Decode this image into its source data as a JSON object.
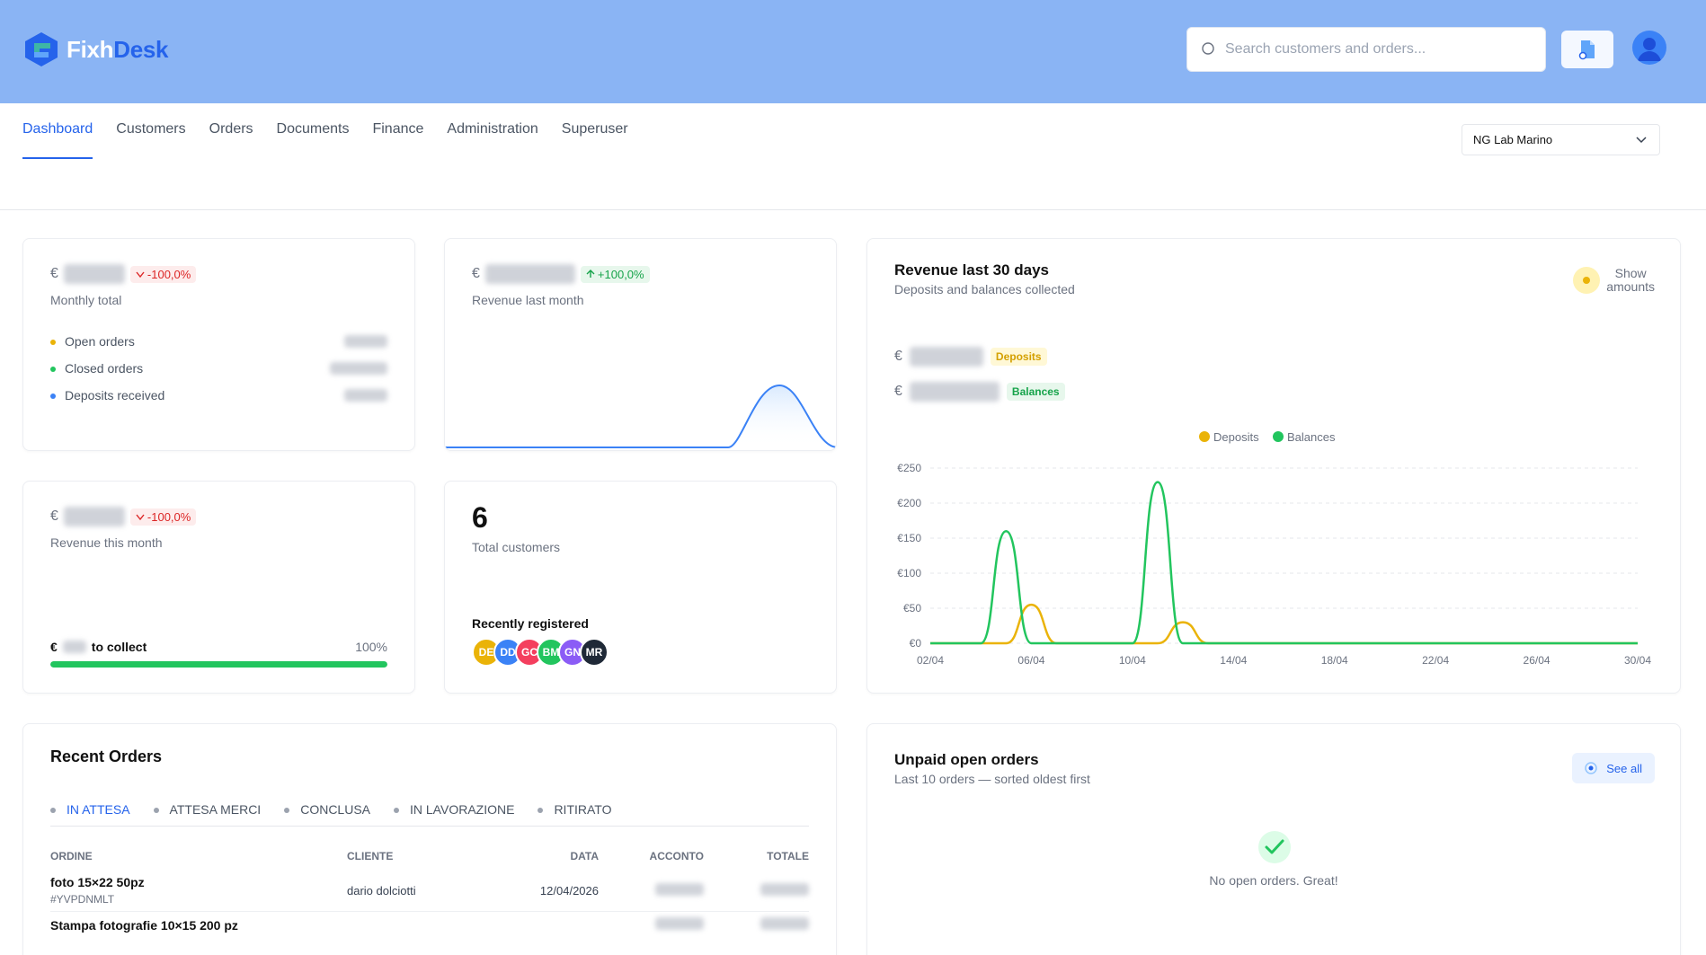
{
  "app": {
    "logo_left": "Fixh",
    "logo_right": "Desk"
  },
  "search": {
    "placeholder": "Search customers and orders..."
  },
  "nav": {
    "tabs": [
      "Dashboard",
      "Customers",
      "Orders",
      "Documents",
      "Finance",
      "Administration",
      "Superuser"
    ],
    "active": "Dashboard"
  },
  "lab_select": {
    "value": "NG Lab Marino"
  },
  "currency": "€",
  "monthly_total": {
    "change": "-100,0%",
    "label": "Monthly total",
    "legend": [
      {
        "label": "Open orders",
        "color": "#eab308"
      },
      {
        "label": "Closed orders",
        "color": "#22c55e"
      },
      {
        "label": "Deposits received",
        "color": "#3b82f6"
      }
    ]
  },
  "revenue_last_month": {
    "change": "+100,0%",
    "label": "Revenue last month"
  },
  "revenue_this_month": {
    "change": "-100,0%",
    "label": "Revenue this month",
    "collect_label": "to collect",
    "collect_percent": "100%",
    "collect_fraction": 1.0
  },
  "customers": {
    "count": "6",
    "label": "Total customers",
    "recent_title": "Recently registered",
    "avatars": [
      {
        "initials": "DE",
        "color": "#eab308"
      },
      {
        "initials": "DD",
        "color": "#3b82f6"
      },
      {
        "initials": "GC",
        "color": "#f43f5e"
      },
      {
        "initials": "BM",
        "color": "#22c55e"
      },
      {
        "initials": "GN",
        "color": "#8b5cf6"
      },
      {
        "initials": "MR",
        "color": "#1f2937"
      }
    ]
  },
  "revenue_30": {
    "title": "Revenue last 30 days",
    "subtitle": "Deposits and balances collected",
    "toggle_label_1": "Show",
    "toggle_label_2": "amounts",
    "deposits_tag": "Deposits",
    "balances_tag": "Balances"
  },
  "chart_data": {
    "type": "line",
    "x": [
      "02/04",
      "03/04",
      "04/04",
      "05/04",
      "06/04",
      "07/04",
      "08/04",
      "09/04",
      "10/04",
      "11/04",
      "12/04",
      "13/04",
      "14/04",
      "15/04",
      "16/04",
      "17/04",
      "18/04",
      "19/04",
      "20/04",
      "21/04",
      "22/04",
      "23/04",
      "24/04",
      "25/04",
      "26/04",
      "27/04",
      "28/04",
      "29/04",
      "30/04"
    ],
    "x_ticks": [
      "02/04",
      "06/04",
      "10/04",
      "14/04",
      "18/04",
      "22/04",
      "26/04",
      "30/04"
    ],
    "y_ticks": [
      "€0",
      "€50",
      "€100",
      "€150",
      "€200",
      "€250"
    ],
    "ylim": [
      0,
      250
    ],
    "legend": "top-center",
    "grid": true,
    "series": [
      {
        "name": "Deposits",
        "color": "#eab308",
        "values": [
          0,
          0,
          0,
          0,
          55,
          0,
          0,
          0,
          0,
          0,
          30,
          0,
          0,
          0,
          0,
          0,
          0,
          0,
          0,
          0,
          0,
          0,
          0,
          0,
          0,
          0,
          0,
          0,
          0
        ]
      },
      {
        "name": "Balances",
        "color": "#22c55e",
        "values": [
          0,
          0,
          0,
          160,
          0,
          0,
          0,
          0,
          0,
          230,
          0,
          0,
          0,
          0,
          0,
          0,
          0,
          0,
          0,
          0,
          0,
          0,
          0,
          0,
          0,
          0,
          0,
          0,
          0
        ]
      }
    ]
  },
  "recent_orders": {
    "title": "Recent Orders",
    "status_tabs": [
      "IN ATTESA",
      "ATTESA MERCI",
      "CONCLUSA",
      "IN LAVORAZIONE",
      "RITIRATO"
    ],
    "columns": [
      "ORDINE",
      "CLIENTE",
      "DATA",
      "ACCONTO",
      "TOTALE"
    ],
    "rows": [
      {
        "order": "foto 15×22 50pz",
        "code": "#YVPDNMLT",
        "client": "dario dolciotti",
        "date": "12/04/2026"
      },
      {
        "order": "Stampa fotografie 10×15 200 pz",
        "code": "",
        "client": "",
        "date": ""
      }
    ]
  },
  "unpaid": {
    "title": "Unpaid open orders",
    "subtitle": "Last 10 orders — sorted oldest first",
    "see_all": "See all",
    "empty": "No open orders. Great!"
  }
}
